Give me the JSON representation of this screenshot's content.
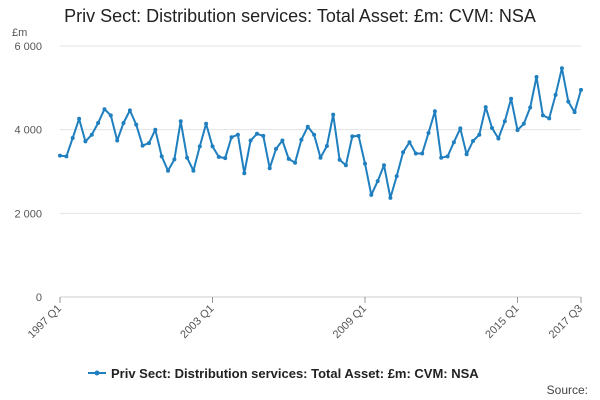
{
  "chart_data": {
    "type": "line",
    "title": "Priv Sect: Distribution services: Total Asset: £m: CVM: NSA",
    "ylabel": "£m",
    "xlabel": "",
    "ylim": [
      0,
      6000
    ],
    "y_ticks": [
      0,
      2000,
      4000,
      6000
    ],
    "y_tick_labels": [
      "0",
      "2 000",
      "4 000",
      "6 000"
    ],
    "x_tick_labels": [
      "1997 Q1",
      "2003 Q1",
      "2009 Q1",
      "2015 Q1",
      "2017 Q3"
    ],
    "grid": true,
    "legend_position": "bottom",
    "color": "#1f7fbf",
    "source_label": "Source:",
    "series": [
      {
        "name": "Priv Sect: Distribution services: Total Asset: £m: CVM: NSA",
        "x": [
          "1997 Q1",
          "1997 Q2",
          "1997 Q3",
          "1997 Q4",
          "1998 Q1",
          "1998 Q2",
          "1998 Q3",
          "1998 Q4",
          "1999 Q1",
          "1999 Q2",
          "1999 Q3",
          "1999 Q4",
          "2000 Q1",
          "2000 Q2",
          "2000 Q3",
          "2000 Q4",
          "2001 Q1",
          "2001 Q2",
          "2001 Q3",
          "2001 Q4",
          "2002 Q1",
          "2002 Q2",
          "2002 Q3",
          "2002 Q4",
          "2003 Q1",
          "2003 Q2",
          "2003 Q3",
          "2003 Q4",
          "2004 Q1",
          "2004 Q2",
          "2004 Q3",
          "2004 Q4",
          "2005 Q1",
          "2005 Q2",
          "2005 Q3",
          "2005 Q4",
          "2006 Q1",
          "2006 Q2",
          "2006 Q3",
          "2006 Q4",
          "2007 Q1",
          "2007 Q2",
          "2007 Q3",
          "2007 Q4",
          "2008 Q1",
          "2008 Q2",
          "2008 Q3",
          "2008 Q4",
          "2009 Q1",
          "2009 Q2",
          "2009 Q3",
          "2009 Q4",
          "2010 Q1",
          "2010 Q2",
          "2010 Q3",
          "2010 Q4",
          "2011 Q1",
          "2011 Q2",
          "2011 Q3",
          "2011 Q4",
          "2012 Q1",
          "2012 Q2",
          "2012 Q3",
          "2012 Q4",
          "2013 Q1",
          "2013 Q2",
          "2013 Q3",
          "2013 Q4",
          "2014 Q1",
          "2014 Q2",
          "2014 Q3",
          "2014 Q4",
          "2015 Q1",
          "2015 Q2",
          "2015 Q3",
          "2015 Q4",
          "2016 Q1",
          "2016 Q2",
          "2016 Q3",
          "2016 Q4",
          "2017 Q1",
          "2017 Q2",
          "2017 Q3"
        ],
        "values": [
          3380,
          3360,
          3800,
          4260,
          3720,
          3880,
          4160,
          4490,
          4340,
          3740,
          4160,
          4460,
          4120,
          3620,
          3680,
          4000,
          3360,
          3020,
          3290,
          4200,
          3330,
          3020,
          3600,
          4140,
          3600,
          3350,
          3320,
          3820,
          3880,
          2960,
          3740,
          3900,
          3850,
          3080,
          3540,
          3740,
          3300,
          3210,
          3760,
          4070,
          3880,
          3330,
          3610,
          4360,
          3280,
          3150,
          3840,
          3850,
          3190,
          2440,
          2770,
          3150,
          2370,
          2890,
          3460,
          3700,
          3430,
          3430,
          3920,
          4440,
          3330,
          3360,
          3700,
          4030,
          3410,
          3730,
          3880,
          4540,
          4040,
          3790,
          4200,
          4740,
          3990,
          4140,
          4530,
          5260,
          4340,
          4270,
          4830,
          5470,
          4670,
          4420,
          4950
        ]
      }
    ]
  }
}
